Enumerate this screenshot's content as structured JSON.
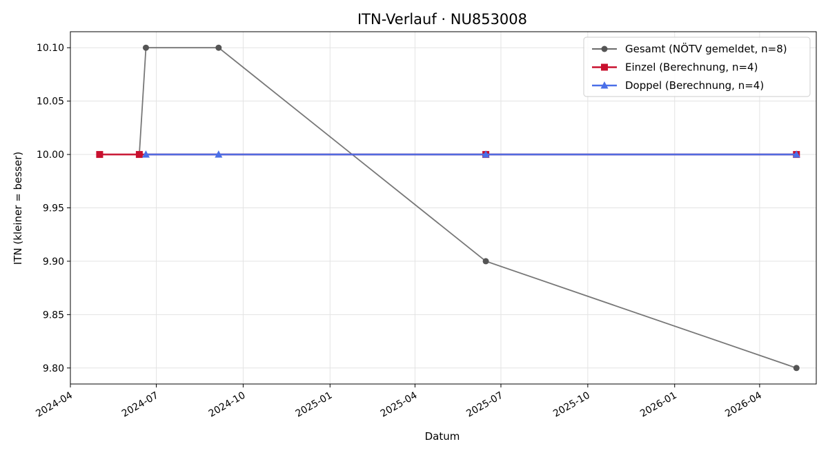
{
  "chart_data": {
    "type": "line",
    "title": "ITN-Verlauf · NU853008",
    "xlabel": "Datum",
    "ylabel": "ITN  (kleiner = besser)",
    "x_axis_type": "date",
    "xlim": [
      "2024-04-01",
      "2026-05-31"
    ],
    "ylim": [
      9.785,
      10.115
    ],
    "x_ticks": [
      {
        "date": "2024-04-01",
        "label": "2024-04"
      },
      {
        "date": "2024-07-01",
        "label": "2024-07"
      },
      {
        "date": "2024-10-01",
        "label": "2024-10"
      },
      {
        "date": "2025-01-01",
        "label": "2025-01"
      },
      {
        "date": "2025-04-01",
        "label": "2025-04"
      },
      {
        "date": "2025-07-01",
        "label": "2025-07"
      },
      {
        "date": "2025-10-01",
        "label": "2025-10"
      },
      {
        "date": "2026-01-01",
        "label": "2026-01"
      },
      {
        "date": "2026-04-01",
        "label": "2026-04"
      }
    ],
    "y_ticks": [
      {
        "value": 9.8,
        "label": "9.80"
      },
      {
        "value": 9.85,
        "label": "9.85"
      },
      {
        "value": 9.9,
        "label": "9.90"
      },
      {
        "value": 9.95,
        "label": "9.95"
      },
      {
        "value": 10.0,
        "label": "10.00"
      },
      {
        "value": 10.05,
        "label": "10.05"
      },
      {
        "value": 10.1,
        "label": "10.10"
      }
    ],
    "grid": true,
    "legend_position": "top-right",
    "series": [
      {
        "name": "Gesamt (NÖTV gemeldet, n=8)",
        "color": "#555555",
        "marker": "circle",
        "points": [
          {
            "x": "2024-06-13",
            "y": 10.0
          },
          {
            "x": "2024-06-20",
            "y": 10.1
          },
          {
            "x": "2024-09-05",
            "y": 10.1
          },
          {
            "x": "2025-06-15",
            "y": 9.9
          },
          {
            "x": "2026-05-10",
            "y": 9.8
          }
        ]
      },
      {
        "name": "Einzel (Berechnung, n=4)",
        "color": "#c8102e",
        "marker": "square",
        "points": [
          {
            "x": "2024-05-02",
            "y": 10.0
          },
          {
            "x": "2024-06-13",
            "y": 10.0
          },
          {
            "x": "2025-06-15",
            "y": 10.0
          },
          {
            "x": "2026-05-10",
            "y": 10.0
          }
        ]
      },
      {
        "name": "Doppel (Berechnung, n=4)",
        "color": "#4a6fe8",
        "marker": "triangle",
        "points": [
          {
            "x": "2024-06-20",
            "y": 10.0
          },
          {
            "x": "2024-09-05",
            "y": 10.0
          },
          {
            "x": "2025-06-15",
            "y": 10.0
          },
          {
            "x": "2026-05-10",
            "y": 10.0
          }
        ]
      }
    ]
  }
}
